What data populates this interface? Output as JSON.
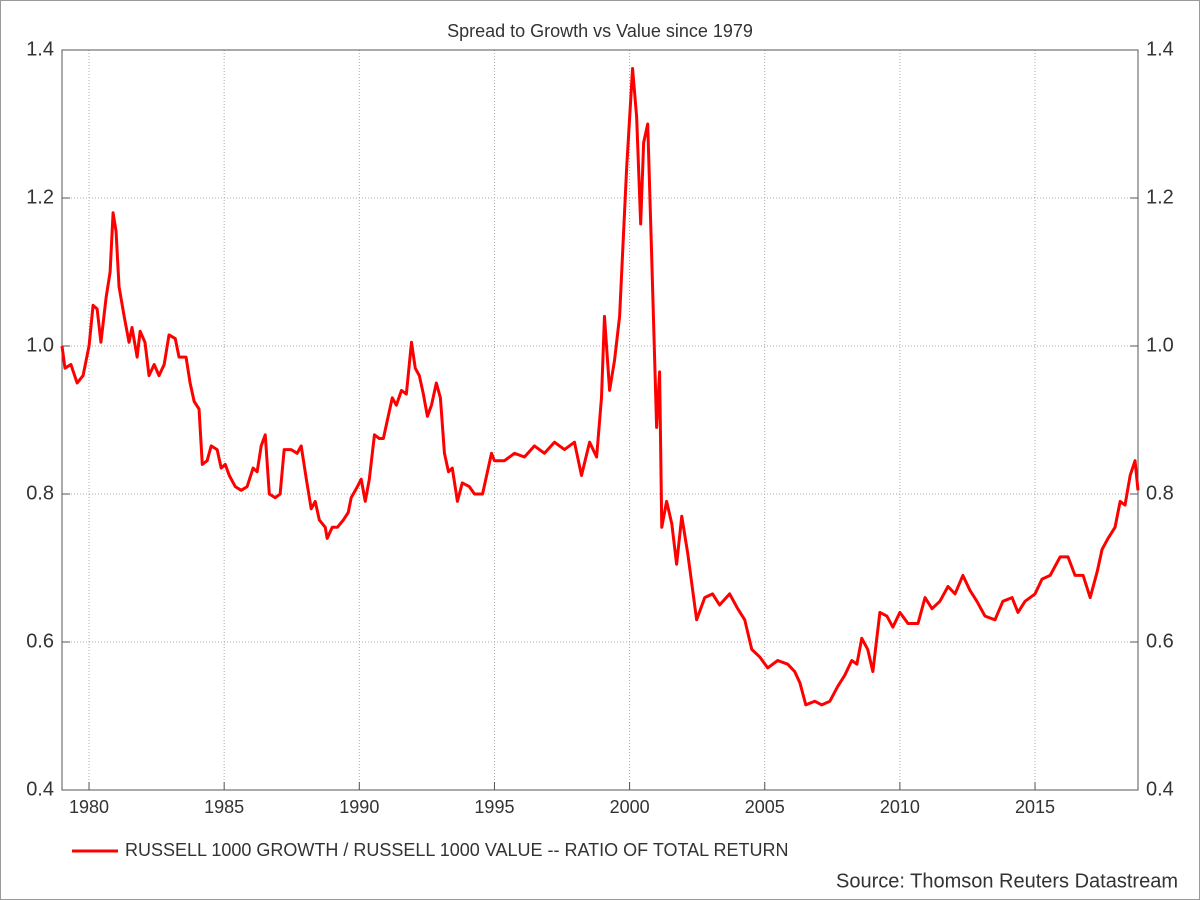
{
  "chart_data": {
    "type": "line",
    "title": "Spread to Growth vs Value since 1979",
    "source": "Source: Thomson Reuters Datastream",
    "xlim": [
      1979,
      2018.81
    ],
    "xticks": [
      1980,
      1985,
      1990,
      1995,
      2000,
      2005,
      2010,
      2015
    ],
    "ylim": [
      0.4,
      1.4
    ],
    "yticks": [
      0.4,
      0.6,
      0.8,
      {
        "value": 1,
        "label": "1.0"
      },
      1.2,
      1.4
    ],
    "grid": true,
    "legend": "bottom-left",
    "x": [
      1979.0,
      1979.11,
      1979.33,
      1979.56,
      1979.78,
      1980.0,
      1980.15,
      1980.3,
      1980.44,
      1980.63,
      1980.78,
      1980.89,
      1981.0,
      1981.11,
      1981.3,
      1981.48,
      1981.59,
      1981.78,
      1981.89,
      1982.07,
      1982.22,
      1982.41,
      1982.59,
      1982.78,
      1982.96,
      1983.19,
      1983.33,
      1983.59,
      1983.74,
      1983.89,
      1984.07,
      1984.19,
      1984.37,
      1984.52,
      1984.74,
      1984.89,
      1985.04,
      1985.19,
      1985.41,
      1985.63,
      1985.85,
      1986.07,
      1986.22,
      1986.37,
      1986.52,
      1986.67,
      1986.89,
      1987.07,
      1987.22,
      1987.48,
      1987.7,
      1987.85,
      1988.04,
      1988.22,
      1988.37,
      1988.52,
      1988.74,
      1988.81,
      1989.0,
      1989.19,
      1989.41,
      1989.59,
      1989.7,
      1989.93,
      1990.07,
      1990.22,
      1990.37,
      1990.56,
      1990.74,
      1990.89,
      1991.04,
      1991.22,
      1991.37,
      1991.56,
      1991.74,
      1991.93,
      1992.07,
      1992.22,
      1992.37,
      1992.52,
      1992.67,
      1992.85,
      1993.0,
      1993.15,
      1993.3,
      1993.44,
      1993.63,
      1993.81,
      1994.07,
      1994.26,
      1994.56,
      1994.74,
      1994.89,
      1995.0,
      1995.37,
      1995.74,
      1996.11,
      1996.48,
      1996.85,
      1997.22,
      1997.59,
      1997.96,
      1998.22,
      1998.52,
      1998.78,
      1998.96,
      1999.07,
      1999.26,
      1999.44,
      1999.63,
      1999.89,
      2000.11,
      2000.26,
      2000.41,
      2000.52,
      2000.67,
      2000.81,
      2001.0,
      2001.11,
      2001.19,
      2001.37,
      2001.56,
      2001.74,
      2001.93,
      2002.15,
      2002.48,
      2002.78,
      2003.07,
      2003.33,
      2003.7,
      2004.0,
      2004.26,
      2004.52,
      2004.81,
      2005.11,
      2005.48,
      2005.85,
      2006.11,
      2006.3,
      2006.52,
      2006.85,
      2007.11,
      2007.41,
      2007.7,
      2007.96,
      2008.22,
      2008.41,
      2008.59,
      2008.81,
      2009.0,
      2009.26,
      2009.52,
      2009.74,
      2010.0,
      2010.3,
      2010.67,
      2010.93,
      2011.19,
      2011.48,
      2011.78,
      2012.04,
      2012.33,
      2012.59,
      2012.85,
      2013.15,
      2013.52,
      2013.81,
      2014.15,
      2014.37,
      2014.63,
      2015.0,
      2015.26,
      2015.56,
      2015.93,
      2016.22,
      2016.48,
      2016.78,
      2017.04,
      2017.3,
      2017.48,
      2017.7,
      2017.96,
      2018.15,
      2018.33,
      2018.52,
      2018.7,
      2018.81
    ],
    "series": [
      {
        "name": "RUSSELL 1000 GROWTH / RUSSELL 1000 VALUE -- RATIO OF TOTAL RETURN",
        "color": "#ff0000",
        "values": [
          1.0,
          0.97,
          0.975,
          0.95,
          0.96,
          1.0,
          1.055,
          1.05,
          1.005,
          1.065,
          1.1,
          1.18,
          1.155,
          1.08,
          1.04,
          1.005,
          1.025,
          0.985,
          1.02,
          1.005,
          0.96,
          0.975,
          0.96,
          0.975,
          1.015,
          1.01,
          0.985,
          0.985,
          0.95,
          0.925,
          0.915,
          0.84,
          0.845,
          0.865,
          0.86,
          0.835,
          0.84,
          0.825,
          0.81,
          0.805,
          0.81,
          0.835,
          0.83,
          0.865,
          0.88,
          0.8,
          0.795,
          0.8,
          0.86,
          0.86,
          0.855,
          0.865,
          0.82,
          0.78,
          0.79,
          0.765,
          0.755,
          0.74,
          0.755,
          0.755,
          0.765,
          0.775,
          0.795,
          0.81,
          0.82,
          0.79,
          0.82,
          0.88,
          0.875,
          0.875,
          0.9,
          0.93,
          0.92,
          0.94,
          0.935,
          1.005,
          0.97,
          0.96,
          0.935,
          0.905,
          0.92,
          0.95,
          0.93,
          0.855,
          0.83,
          0.835,
          0.79,
          0.815,
          0.81,
          0.8,
          0.8,
          0.83,
          0.855,
          0.845,
          0.845,
          0.855,
          0.85,
          0.865,
          0.855,
          0.87,
          0.86,
          0.87,
          0.825,
          0.87,
          0.85,
          0.93,
          1.04,
          0.94,
          0.98,
          1.04,
          1.24,
          1.375,
          1.31,
          1.165,
          1.275,
          1.3,
          1.13,
          0.89,
          0.965,
          0.755,
          0.79,
          0.76,
          0.705,
          0.77,
          0.72,
          0.63,
          0.66,
          0.665,
          0.65,
          0.665,
          0.645,
          0.63,
          0.59,
          0.58,
          0.565,
          0.575,
          0.57,
          0.56,
          0.545,
          0.515,
          0.52,
          0.515,
          0.52,
          0.54,
          0.555,
          0.575,
          0.57,
          0.605,
          0.59,
          0.56,
          0.64,
          0.635,
          0.62,
          0.64,
          0.625,
          0.625,
          0.66,
          0.645,
          0.655,
          0.675,
          0.665,
          0.69,
          0.67,
          0.655,
          0.635,
          0.63,
          0.655,
          0.66,
          0.64,
          0.655,
          0.665,
          0.685,
          0.69,
          0.715,
          0.715,
          0.69,
          0.69,
          0.66,
          0.695,
          0.725,
          0.74,
          0.755,
          0.79,
          0.785,
          0.825,
          0.845,
          0.805
        ]
      }
    ]
  }
}
